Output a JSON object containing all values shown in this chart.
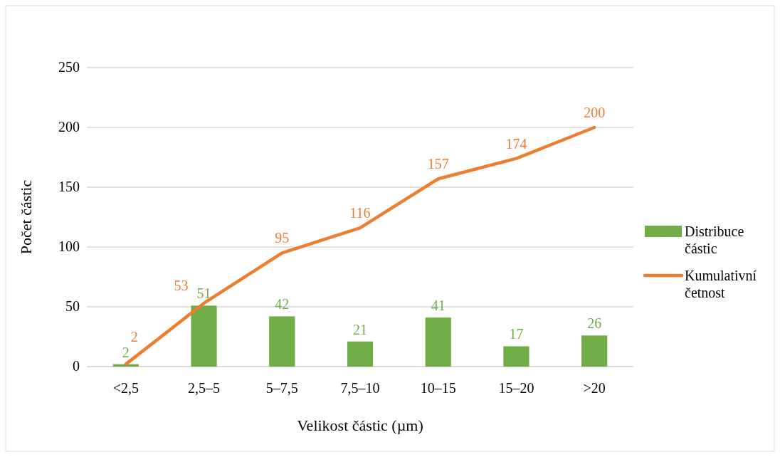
{
  "chart_data": {
    "type": "bar",
    "xlabel": "Velikost částic (µm)",
    "ylabel": "Počet částic",
    "categories": [
      "<2,5",
      "2,5–5",
      "5–7,5",
      "7,5–10",
      "10–15",
      "15–20",
      ">20"
    ],
    "series": [
      {
        "name": "Distribuce částic",
        "color": "#70ad47",
        "values": [
          2,
          51,
          42,
          21,
          41,
          17,
          26
        ]
      },
      {
        "name": "Kumulativní četnost",
        "type": "line",
        "color": "#ed7d31",
        "values": [
          2,
          53,
          95,
          116,
          157,
          174,
          200
        ]
      }
    ],
    "ylim": [
      0,
      250
    ],
    "yticks": [
      0,
      50,
      100,
      150,
      200,
      250
    ],
    "grid": "y",
    "legend": "right",
    "data_labels": true,
    "marker": "none",
    "line_style": "solid"
  }
}
